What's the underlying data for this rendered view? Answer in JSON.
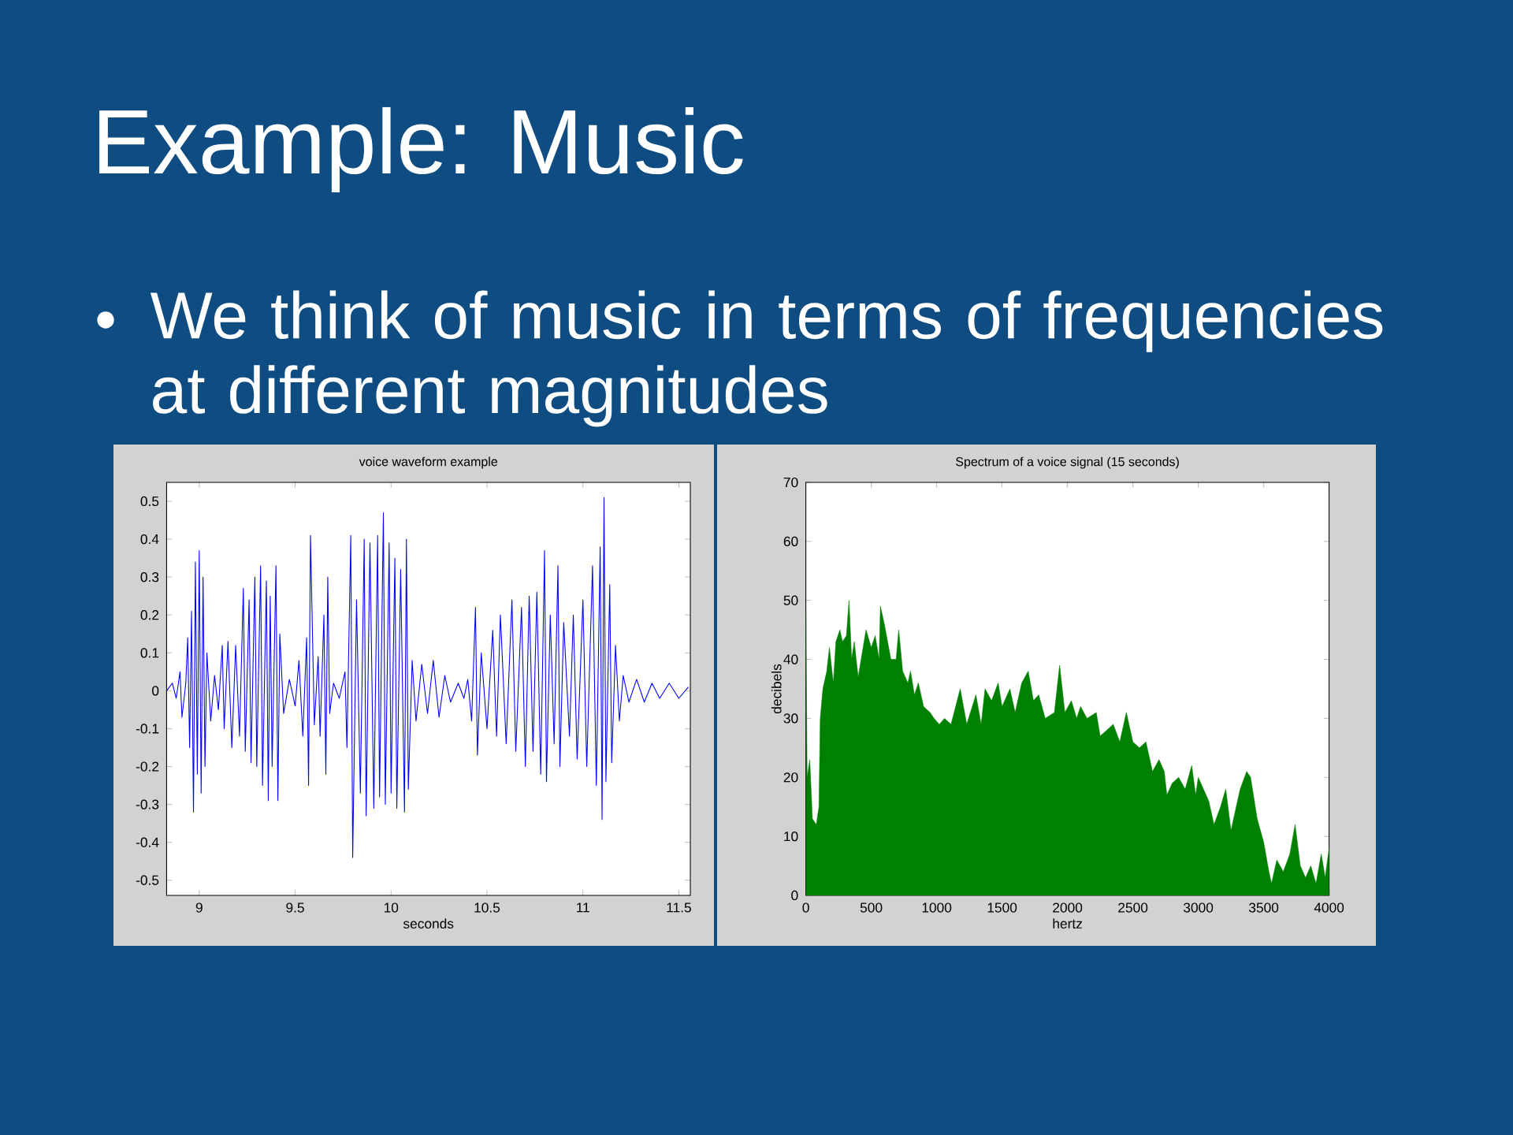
{
  "chart_data": [
    {
      "type": "other",
      "title": "Example: Music",
      "annotations": [
        "We think of music in terms of frequencies at different magnitudes"
      ]
    },
    {
      "type": "line",
      "title": "voice waveform example",
      "xlabel": "seconds",
      "color": "#0000ff",
      "xlim": [
        8.83,
        11.56
      ],
      "ylim": [
        -0.54,
        0.55
      ],
      "xticks": [
        9,
        9.5,
        10,
        10.5,
        11,
        11.5
      ],
      "yticks": [
        -0.5,
        -0.4,
        -0.3,
        -0.2,
        -0.1,
        0,
        0.1,
        0.2,
        0.3,
        0.4,
        0.5
      ],
      "x": [
        8.83,
        8.86,
        8.88,
        8.9,
        8.91,
        8.93,
        8.94,
        8.95,
        8.96,
        8.97,
        8.98,
        8.99,
        9.0,
        9.01,
        9.02,
        9.03,
        9.04,
        9.06,
        9.08,
        9.1,
        9.12,
        9.13,
        9.15,
        9.17,
        9.19,
        9.21,
        9.23,
        9.24,
        9.26,
        9.27,
        9.29,
        9.3,
        9.32,
        9.33,
        9.35,
        9.36,
        9.37,
        9.38,
        9.4,
        9.41,
        9.42,
        9.44,
        9.47,
        9.5,
        9.52,
        9.54,
        9.56,
        9.57,
        9.58,
        9.6,
        9.62,
        9.63,
        9.65,
        9.66,
        9.67,
        9.68,
        9.7,
        9.73,
        9.76,
        9.77,
        9.79,
        9.8,
        9.82,
        9.84,
        9.86,
        9.87,
        9.89,
        9.91,
        9.93,
        9.94,
        9.96,
        9.97,
        9.99,
        10.0,
        10.02,
        10.03,
        10.05,
        10.07,
        10.08,
        10.09,
        10.11,
        10.13,
        10.16,
        10.19,
        10.22,
        10.25,
        10.28,
        10.31,
        10.35,
        10.38,
        10.4,
        10.42,
        10.44,
        10.45,
        10.47,
        10.5,
        10.53,
        10.55,
        10.57,
        10.6,
        10.63,
        10.65,
        10.68,
        10.7,
        10.72,
        10.74,
        10.76,
        10.78,
        10.8,
        10.81,
        10.83,
        10.85,
        10.87,
        10.88,
        10.9,
        10.93,
        10.95,
        10.97,
        11.0,
        11.02,
        11.05,
        11.07,
        11.09,
        11.1,
        11.11,
        11.12,
        11.14,
        11.15,
        11.17,
        11.19,
        11.21,
        11.24,
        11.28,
        11.32,
        11.36,
        11.4,
        11.45,
        11.5,
        11.55
      ],
      "values": [
        0,
        0.02,
        -0.02,
        0.05,
        -0.07,
        0.02,
        0.14,
        -0.15,
        0.21,
        -0.32,
        0.34,
        -0.22,
        0.37,
        -0.27,
        0.3,
        -0.2,
        0.1,
        -0.08,
        0.04,
        -0.05,
        0.12,
        -0.1,
        0.13,
        -0.15,
        0.12,
        -0.12,
        0.27,
        -0.16,
        0.24,
        -0.19,
        0.3,
        -0.2,
        0.33,
        -0.25,
        0.29,
        -0.29,
        0.25,
        -0.2,
        0.33,
        -0.29,
        0.15,
        -0.06,
        0.03,
        -0.04,
        0.08,
        -0.12,
        0.14,
        -0.25,
        0.41,
        -0.09,
        0.09,
        -0.12,
        0.2,
        -0.22,
        0.3,
        -0.06,
        0.02,
        -0.02,
        0.05,
        -0.15,
        0.41,
        -0.44,
        0.24,
        -0.27,
        0.4,
        -0.33,
        0.39,
        -0.31,
        0.41,
        -0.28,
        0.47,
        -0.3,
        0.39,
        -0.27,
        0.35,
        -0.31,
        0.32,
        -0.32,
        0.4,
        -0.26,
        0.08,
        -0.08,
        0.07,
        -0.06,
        0.08,
        -0.07,
        0.04,
        -0.03,
        0.02,
        -0.02,
        0.03,
        -0.08,
        0.22,
        -0.17,
        0.1,
        -0.1,
        0.16,
        -0.12,
        0.2,
        -0.14,
        0.24,
        -0.16,
        0.22,
        -0.2,
        0.25,
        -0.16,
        0.26,
        -0.22,
        0.37,
        -0.24,
        0.2,
        -0.14,
        0.33,
        -0.2,
        0.18,
        -0.12,
        0.2,
        -0.18,
        0.24,
        -0.2,
        0.33,
        -0.25,
        0.38,
        -0.34,
        0.51,
        -0.24,
        0.28,
        -0.19,
        0.12,
        -0.08,
        0.04,
        -0.03,
        0.03,
        -0.03,
        0.02,
        -0.02,
        0.02,
        -0.02,
        0.01
      ]
    },
    {
      "type": "area",
      "title": "Spectrum of a voice signal (15 seconds)",
      "xlabel": "hertz",
      "ylabel": "decibels",
      "color": "#008000",
      "xlim": [
        0,
        4000
      ],
      "ylim": [
        0,
        70
      ],
      "xticks": [
        0,
        500,
        1000,
        1500,
        2000,
        2500,
        3000,
        3500,
        4000
      ],
      "yticks": [
        0,
        10,
        20,
        30,
        40,
        50,
        60,
        70
      ],
      "x": [
        0,
        10,
        30,
        50,
        80,
        100,
        110,
        130,
        160,
        180,
        210,
        230,
        260,
        280,
        310,
        330,
        350,
        370,
        400,
        430,
        460,
        500,
        530,
        560,
        570,
        600,
        650,
        690,
        710,
        740,
        780,
        800,
        830,
        860,
        900,
        950,
        980,
        1020,
        1060,
        1110,
        1180,
        1230,
        1300,
        1340,
        1370,
        1420,
        1470,
        1500,
        1560,
        1600,
        1650,
        1700,
        1740,
        1780,
        1830,
        1900,
        1940,
        1980,
        2030,
        2070,
        2100,
        2150,
        2220,
        2250,
        2300,
        2350,
        2400,
        2450,
        2500,
        2550,
        2600,
        2650,
        2700,
        2740,
        2760,
        2800,
        2850,
        2900,
        2950,
        2980,
        3000,
        3040,
        3080,
        3120,
        3170,
        3210,
        3250,
        3280,
        3320,
        3370,
        3400,
        3450,
        3500,
        3540,
        3560,
        3600,
        3650,
        3700,
        3740,
        3780,
        3820,
        3860,
        3900,
        3940,
        3970,
        4000
      ],
      "values": [
        48,
        20,
        23,
        13,
        12,
        15,
        30,
        35,
        38,
        42,
        36,
        43,
        45,
        43,
        44,
        50,
        40,
        43,
        37,
        41,
        45,
        42,
        44,
        40,
        49,
        46,
        40,
        40,
        45,
        38,
        36,
        38,
        34,
        36,
        32,
        31,
        30,
        29,
        30,
        29,
        35,
        29,
        34,
        29,
        35,
        33,
        36,
        32,
        35,
        31,
        36,
        38,
        33,
        34,
        30,
        31,
        39,
        31,
        33,
        30,
        32,
        30,
        31,
        27,
        28,
        29,
        26,
        31,
        26,
        25,
        26,
        21,
        23,
        21,
        17,
        19,
        20,
        18,
        22,
        17,
        20,
        18,
        16,
        12,
        15,
        18,
        11,
        14,
        18,
        21,
        20,
        13,
        9,
        4,
        2,
        6,
        4,
        7,
        12,
        5,
        3,
        5,
        2,
        7,
        3,
        8
      ]
    }
  ]
}
